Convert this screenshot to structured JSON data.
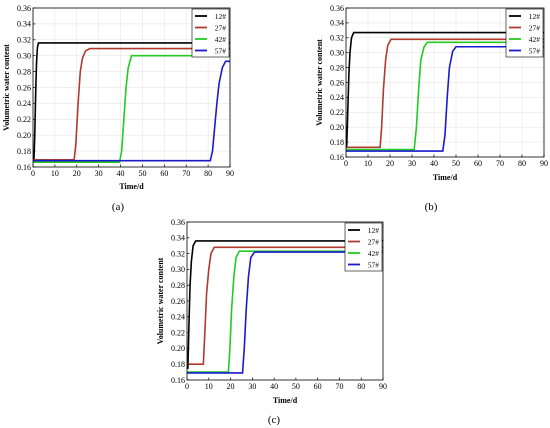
{
  "chart_data": [
    {
      "type": "line",
      "caption": "(a)",
      "xlabel": "Time/d",
      "ylabel": "Volumetric water content",
      "xlim": [
        0,
        90
      ],
      "ylim": [
        0.16,
        0.36
      ],
      "xticks": [
        0,
        10,
        20,
        30,
        40,
        50,
        60,
        70,
        80,
        90
      ],
      "yticks": [
        0.16,
        0.18,
        0.2,
        0.22,
        0.24,
        0.26,
        0.28,
        0.3,
        0.32,
        0.34,
        0.36
      ],
      "grid": true,
      "legend": "top-right",
      "series": [
        {
          "name": "12#",
          "color": "#000000",
          "x": [
            0,
            0.4,
            0.8,
            1.2,
            1.6,
            2.0,
            2.5,
            90
          ],
          "y": [
            0.166,
            0.166,
            0.2,
            0.25,
            0.29,
            0.31,
            0.316,
            0.316
          ]
        },
        {
          "name": "27#",
          "color": "#b03a2e",
          "x": [
            0,
            18.8,
            19.6,
            20.6,
            21.6,
            22.6,
            24.0,
            26.0,
            90
          ],
          "y": [
            0.169,
            0.169,
            0.19,
            0.24,
            0.28,
            0.297,
            0.306,
            0.309,
            0.309
          ]
        },
        {
          "name": "42#",
          "color": "#22cc22",
          "x": [
            0,
            39.5,
            40.5,
            41.5,
            42.5,
            43.5,
            45.0,
            90
          ],
          "y": [
            0.166,
            0.166,
            0.18,
            0.22,
            0.26,
            0.285,
            0.3,
            0.3
          ]
        },
        {
          "name": "57#",
          "color": "#1a1acc",
          "x": [
            0,
            81.0,
            82.0,
            83.0,
            84.0,
            85.0,
            86.5,
            88.0,
            90
          ],
          "y": [
            0.168,
            0.168,
            0.18,
            0.21,
            0.24,
            0.265,
            0.285,
            0.293,
            0.293
          ]
        }
      ]
    },
    {
      "type": "line",
      "caption": "(b)",
      "xlabel": "Time/d",
      "ylabel": "Volumetric water content",
      "xlim": [
        0,
        90
      ],
      "ylim": [
        0.16,
        0.36
      ],
      "xticks": [
        0,
        10,
        20,
        30,
        40,
        50,
        60,
        70,
        80,
        90
      ],
      "yticks": [
        0.16,
        0.18,
        0.2,
        0.22,
        0.24,
        0.26,
        0.28,
        0.3,
        0.32,
        0.34,
        0.36
      ],
      "grid": true,
      "legend": "top-right",
      "series": [
        {
          "name": "12#",
          "color": "#000000",
          "x": [
            0,
            0.3,
            0.8,
            1.3,
            1.8,
            2.5,
            3.5,
            90
          ],
          "y": [
            0.173,
            0.173,
            0.22,
            0.27,
            0.3,
            0.32,
            0.327,
            0.327
          ]
        },
        {
          "name": "27#",
          "color": "#b03a2e",
          "x": [
            0,
            15.5,
            16.2,
            17.0,
            18.0,
            19.0,
            20.5,
            90
          ],
          "y": [
            0.173,
            0.173,
            0.2,
            0.25,
            0.29,
            0.31,
            0.318,
            0.318
          ]
        },
        {
          "name": "42#",
          "color": "#22cc22",
          "x": [
            0,
            31.0,
            32.0,
            33.0,
            34.0,
            35.5,
            37.0,
            90
          ],
          "y": [
            0.17,
            0.17,
            0.2,
            0.25,
            0.29,
            0.308,
            0.314,
            0.314
          ]
        },
        {
          "name": "57#",
          "color": "#1a1acc",
          "x": [
            0,
            44.0,
            45.0,
            46.0,
            47.0,
            48.5,
            50.0,
            90
          ],
          "y": [
            0.168,
            0.168,
            0.19,
            0.24,
            0.28,
            0.302,
            0.308,
            0.308
          ]
        }
      ]
    },
    {
      "type": "line",
      "caption": "(c)",
      "xlabel": "Time/d",
      "ylabel": "Volumetric water content",
      "xlim": [
        0,
        90
      ],
      "ylim": [
        0.16,
        0.36
      ],
      "xticks": [
        0,
        10,
        20,
        30,
        40,
        50,
        60,
        70,
        80,
        90
      ],
      "yticks": [
        0.16,
        0.18,
        0.2,
        0.22,
        0.24,
        0.26,
        0.28,
        0.3,
        0.32,
        0.34,
        0.36
      ],
      "grid": false,
      "legend": "top-right",
      "series": [
        {
          "name": "12#",
          "color": "#000000",
          "x": [
            0,
            0.4,
            0.9,
            1.4,
            2.0,
            2.8,
            4.0,
            90
          ],
          "y": [
            0.175,
            0.175,
            0.23,
            0.28,
            0.31,
            0.33,
            0.336,
            0.336
          ]
        },
        {
          "name": "27#",
          "color": "#b03a2e",
          "x": [
            0,
            7.5,
            8.2,
            9.0,
            10.0,
            11.0,
            12.5,
            90
          ],
          "y": [
            0.18,
            0.18,
            0.22,
            0.27,
            0.3,
            0.32,
            0.328,
            0.328
          ]
        },
        {
          "name": "42#",
          "color": "#22cc22",
          "x": [
            0,
            19.0,
            19.7,
            20.5,
            21.5,
            22.5,
            24.0,
            90
          ],
          "y": [
            0.17,
            0.17,
            0.2,
            0.25,
            0.29,
            0.315,
            0.323,
            0.323
          ]
        },
        {
          "name": "57#",
          "color": "#1a1acc",
          "x": [
            0,
            25.5,
            26.3,
            27.2,
            28.2,
            29.3,
            31.0,
            90
          ],
          "y": [
            0.169,
            0.169,
            0.2,
            0.25,
            0.29,
            0.315,
            0.322,
            0.322
          ]
        }
      ]
    }
  ]
}
